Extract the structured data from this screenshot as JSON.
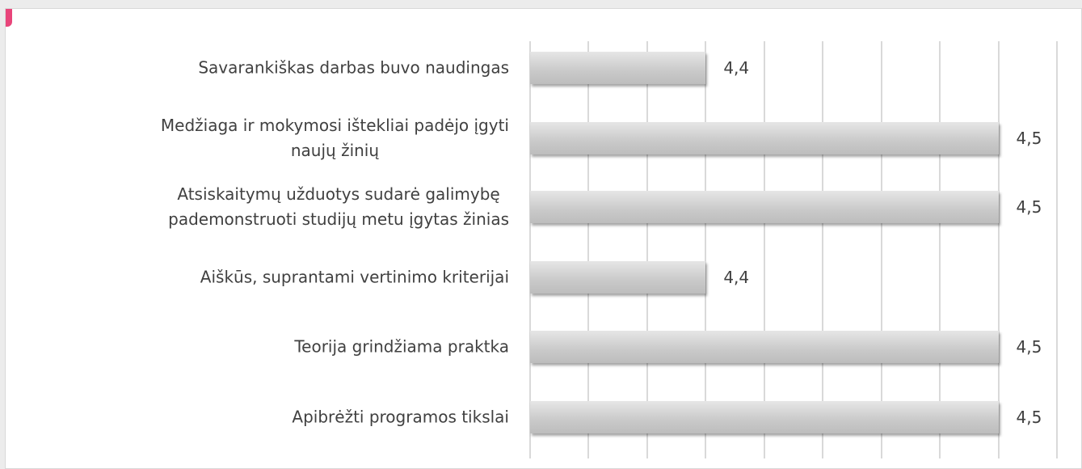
{
  "chart_data": {
    "type": "bar",
    "orientation": "horizontal",
    "categories": [
      "Savarankiškas darbas buvo naudingas",
      "Medžiaga ir mokymosi ištekliai padėjo įgyti\nnaujų žinių",
      "Atsiskaitymų užduotys sudarė galimybę\npademonstruoti studijų metu įgytas žinias",
      "Aiškūs, suprantami vertinimo kriterijai",
      "Teorija grindžiama praktka",
      "Apibrėžti programos tikslai"
    ],
    "values": [
      4.4,
      4.5,
      4.5,
      4.4,
      4.5,
      4.5
    ],
    "value_labels": [
      "4,4",
      "4,5",
      "4,5",
      "4,4",
      "4,5",
      "4,5"
    ],
    "color": "#c9c9c9",
    "xlim": [
      4.34,
      4.52
    ],
    "xticks": [
      4.34,
      4.36,
      4.38,
      4.4,
      4.42,
      4.44,
      4.46,
      4.48,
      4.5,
      4.52
    ],
    "grid": true
  }
}
